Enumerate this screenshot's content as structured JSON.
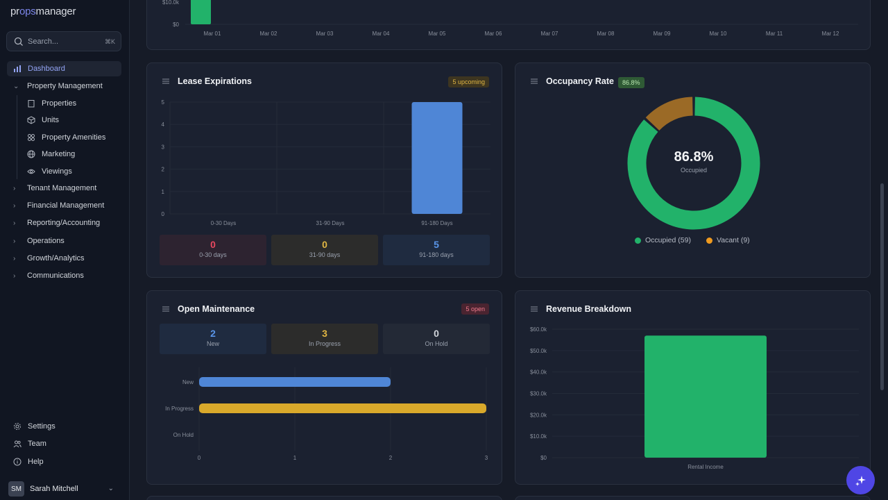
{
  "app": {
    "logo_left": "pr",
    "logo_accent": "ops",
    "logo_right": "manager"
  },
  "search": {
    "placeholder": "Search...",
    "shortcut": "⌘K"
  },
  "sidebar": {
    "dashboard": "Dashboard",
    "property_management": "Property Management",
    "sub_items": [
      "Properties",
      "Units",
      "Property Amenities",
      "Marketing",
      "Viewings"
    ],
    "groups": [
      "Tenant Management",
      "Financial Management",
      "Reporting/Accounting",
      "Operations",
      "Growth/Analytics",
      "Communications"
    ],
    "footer": [
      "Settings",
      "Team",
      "Help"
    ],
    "user": {
      "initials": "SM",
      "name": "Sarah Mitchell"
    }
  },
  "top_chart": {
    "ytick_top": "$10.0k",
    "ytick_zero": "$0",
    "dates": [
      "Mar 01",
      "Mar 02",
      "Mar 03",
      "Mar 04",
      "Mar 05",
      "Mar 06",
      "Mar 07",
      "Mar 08",
      "Mar 09",
      "Mar 10",
      "Mar 11",
      "Mar 12"
    ]
  },
  "lease": {
    "title": "Lease Expirations",
    "badge": "5 upcoming",
    "stats": [
      {
        "value": "0",
        "label": "0-30 days"
      },
      {
        "value": "0",
        "label": "31-90 days"
      },
      {
        "value": "5",
        "label": "91-180 days"
      }
    ]
  },
  "occupancy": {
    "title": "Occupancy Rate",
    "badge": "86.8%",
    "center_value": "86.8%",
    "center_label": "Occupied",
    "legend": [
      "Occupied (59)",
      "Vacant (9)"
    ]
  },
  "maintenance": {
    "title": "Open Maintenance",
    "badge": "5 open",
    "stats": [
      {
        "value": "2",
        "label": "New"
      },
      {
        "value": "3",
        "label": "In Progress"
      },
      {
        "value": "0",
        "label": "On Hold"
      }
    ]
  },
  "revenue": {
    "title": "Revenue Breakdown"
  },
  "chart_data": [
    {
      "type": "bar",
      "categories": [
        "0-30 Days",
        "31-90 Days",
        "91-180 Days"
      ],
      "values": [
        0,
        0,
        5
      ],
      "ylim": [
        0,
        5
      ],
      "yticks": [
        "0",
        "1",
        "2",
        "3",
        "4",
        "5"
      ]
    },
    {
      "type": "pie",
      "categories": [
        "Occupied",
        "Vacant"
      ],
      "values": [
        59,
        9
      ],
      "colors": [
        "#22b26a",
        "#9b6a26"
      ]
    },
    {
      "type": "bar",
      "orientation": "horizontal",
      "categories": [
        "New",
        "In Progress",
        "On Hold"
      ],
      "values": [
        2,
        3,
        0
      ],
      "xlim": [
        0,
        3
      ],
      "xticks": [
        "0",
        "1",
        "2",
        "3"
      ],
      "colors": [
        "#4f86d6",
        "#d9a92b",
        "#6b7280"
      ]
    },
    {
      "type": "bar",
      "categories": [
        "Rental Income"
      ],
      "values": [
        57000
      ],
      "ylim": [
        0,
        60000
      ],
      "yticks": [
        "$0",
        "$10.0k",
        "$20.0k",
        "$30.0k",
        "$40.0k",
        "$50.0k",
        "$60.0k"
      ]
    }
  ]
}
